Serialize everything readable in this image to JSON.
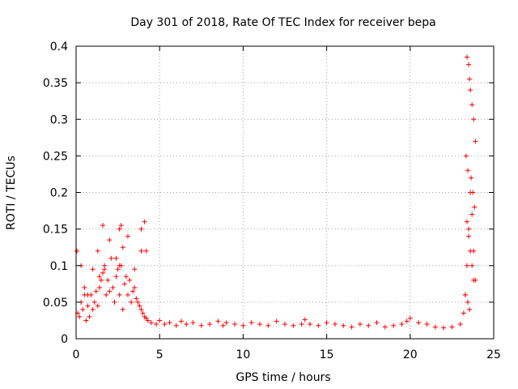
{
  "chart_data": {
    "type": "scatter",
    "title": "Day 301 of 2018, Rate Of TEC Index for receiver bepa",
    "xlabel": "GPS time / hours",
    "ylabel": "ROTI / TECUs",
    "xlim": [
      0,
      25
    ],
    "ylim": [
      0,
      0.4
    ],
    "xticks": [
      "0",
      "5",
      "10",
      "15",
      "20",
      "25"
    ],
    "yticks": [
      "0",
      "0.05",
      "0.1",
      "0.15",
      "0.2",
      "0.25",
      "0.3",
      "0.35",
      "0.4"
    ],
    "grid": true,
    "marker": "plus",
    "series_color": "#ff0000",
    "series": [
      {
        "name": "ROTI",
        "x": [
          0.1,
          0.2,
          0.3,
          0.4,
          0.5,
          0.6,
          0.7,
          0.8,
          0.9,
          1.0,
          1.1,
          1.2,
          1.3,
          1.4,
          1.5,
          1.6,
          1.7,
          1.8,
          1.9,
          2.0,
          2.1,
          2.2,
          2.3,
          2.4,
          2.5,
          2.6,
          2.7,
          2.8,
          2.9,
          3.0,
          3.1,
          3.2,
          3.3,
          3.4,
          3.5,
          3.6,
          3.7,
          3.8,
          3.9,
          4.0,
          4.1,
          4.2,
          4.3,
          4.5,
          4.8,
          5.0,
          5.3,
          5.6,
          6.0,
          6.3,
          6.6,
          7.0,
          7.5,
          8.0,
          8.5,
          8.8,
          9.0,
          9.5,
          10.0,
          10.5,
          11.0,
          11.5,
          12.0,
          12.5,
          13.0,
          13.5,
          13.7,
          14.0,
          14.5,
          15.0,
          15.5,
          16.0,
          16.5,
          17.0,
          17.5,
          18.0,
          18.5,
          19.0,
          19.5,
          19.8,
          20.0,
          20.5,
          21.0,
          21.5,
          22.0,
          22.5,
          23.0,
          23.2,
          23.3,
          23.4,
          23.5,
          23.6,
          23.7,
          23.8,
          23.9,
          0.05,
          0.3,
          0.7,
          1.0,
          1.4,
          1.7,
          2.0,
          2.4,
          2.6,
          2.8,
          3.1,
          3.5,
          3.9,
          4.2,
          4.1,
          3.9,
          2.7,
          2.6,
          1.6,
          1.3,
          0.5,
          23.4,
          23.5,
          23.55,
          23.6,
          23.7,
          23.8,
          23.9,
          23.35,
          23.45,
          23.65,
          23.75,
          23.85,
          23.4,
          23.5,
          23.6,
          23.7,
          23.8,
          23.3,
          23.45,
          23.55
        ],
        "y": [
          0.035,
          0.03,
          0.05,
          0.04,
          0.07,
          0.025,
          0.045,
          0.03,
          0.06,
          0.04,
          0.05,
          0.065,
          0.045,
          0.07,
          0.08,
          0.09,
          0.1,
          0.06,
          0.08,
          0.065,
          0.11,
          0.07,
          0.05,
          0.085,
          0.095,
          0.06,
          0.1,
          0.04,
          0.075,
          0.085,
          0.06,
          0.08,
          0.05,
          0.065,
          0.07,
          0.055,
          0.05,
          0.045,
          0.04,
          0.035,
          0.03,
          0.028,
          0.025,
          0.022,
          0.02,
          0.025,
          0.02,
          0.022,
          0.018,
          0.024,
          0.02,
          0.022,
          0.018,
          0.02,
          0.024,
          0.018,
          0.022,
          0.02,
          0.018,
          0.022,
          0.02,
          0.018,
          0.024,
          0.02,
          0.018,
          0.02,
          0.026,
          0.02,
          0.018,
          0.022,
          0.02,
          0.018,
          0.016,
          0.02,
          0.018,
          0.022,
          0.016,
          0.018,
          0.02,
          0.024,
          0.028,
          0.022,
          0.02,
          0.016,
          0.015,
          0.016,
          0.02,
          0.035,
          0.06,
          0.1,
          0.15,
          0.2,
          0.17,
          0.12,
          0.08,
          0.12,
          0.1,
          0.06,
          0.095,
          0.085,
          0.095,
          0.135,
          0.11,
          0.15,
          0.125,
          0.14,
          0.095,
          0.15,
          0.12,
          0.16,
          0.12,
          0.155,
          0.1,
          0.155,
          0.12,
          0.06,
          0.385,
          0.375,
          0.355,
          0.34,
          0.32,
          0.3,
          0.27,
          0.25,
          0.23,
          0.22,
          0.2,
          0.18,
          0.16,
          0.14,
          0.12,
          0.1,
          0.08,
          0.06,
          0.05,
          0.04
        ]
      }
    ]
  }
}
